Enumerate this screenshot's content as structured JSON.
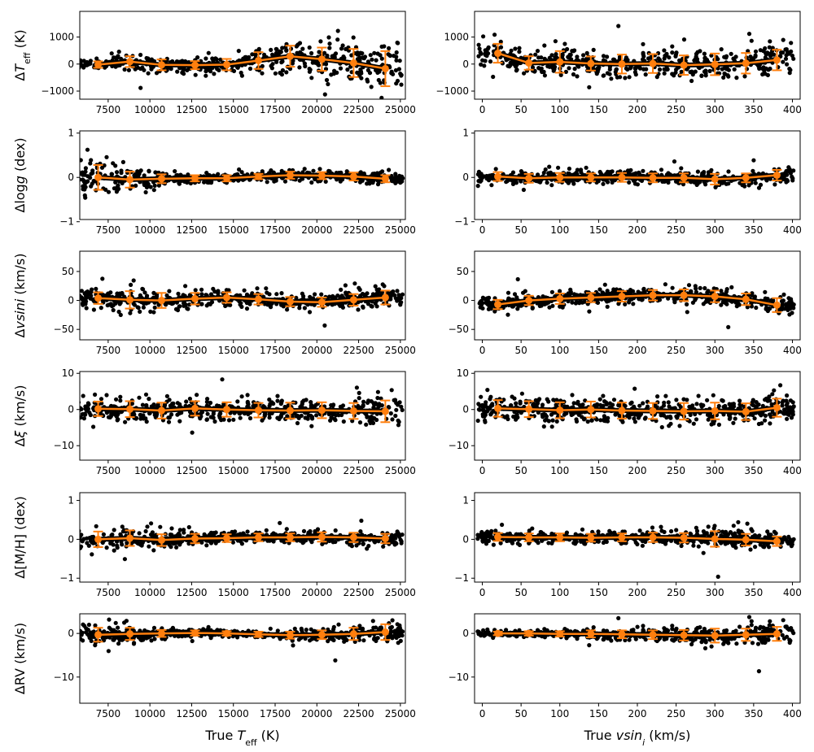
{
  "figure": {
    "type": "scatter-grid",
    "colors": {
      "points": "#000000",
      "binned": "#ff7f0e",
      "frame": "#000000"
    }
  },
  "chart_data": [
    {
      "type": "scatter",
      "row": 0,
      "col": 0,
      "ylabel": {
        "prefix": "Δ",
        "main": "T",
        "sub": "eff",
        "suffix": " (K)"
      },
      "xlim": [
        5800,
        25300
      ],
      "ylim": [
        -1300,
        1950
      ],
      "xticks": [
        7500,
        10000,
        12500,
        15000,
        17500,
        20000,
        22500,
        25000
      ],
      "yticks": [
        -1000,
        0,
        1000
      ],
      "binned": {
        "x": [
          6900,
          8800,
          10700,
          12700,
          14600,
          16500,
          18400,
          20300,
          22200,
          24100
        ],
        "y": [
          -20,
          90,
          -30,
          -40,
          -20,
          130,
          290,
          180,
          40,
          -170
        ],
        "err": [
          120,
          200,
          200,
          150,
          210,
          310,
          390,
          430,
          520,
          650
        ]
      }
    },
    {
      "type": "scatter",
      "row": 0,
      "col": 1,
      "ylabel": {
        "prefix": "",
        "main": "",
        "sub": "",
        "suffix": ""
      },
      "xlim": [
        -10,
        410
      ],
      "ylim": [
        -1300,
        1950
      ],
      "xticks": [
        0,
        50,
        100,
        150,
        200,
        250,
        300,
        350,
        400
      ],
      "yticks": [
        -1000,
        0,
        1000
      ],
      "binned": {
        "x": [
          20,
          60,
          100,
          140,
          180,
          220,
          260,
          300,
          340,
          380
        ],
        "y": [
          400,
          40,
          80,
          20,
          0,
          20,
          -40,
          -10,
          30,
          150
        ],
        "err": [
          350,
          250,
          400,
          260,
          350,
          350,
          360,
          400,
          380,
          380
        ]
      }
    },
    {
      "type": "scatter",
      "row": 1,
      "col": 0,
      "ylabel": {
        "prefix": "Δlog",
        "main": "g",
        "sub": "",
        "suffix": " (dex)"
      },
      "xlim": [
        5800,
        25300
      ],
      "ylim": [
        -0.95,
        1.05
      ],
      "xticks": [
        7500,
        10000,
        12500,
        15000,
        17500,
        20000,
        22500,
        25000
      ],
      "yticks": [
        -1,
        0,
        1
      ],
      "binned": {
        "x": [
          6900,
          8800,
          10700,
          12700,
          14600,
          16500,
          18400,
          20300,
          22200,
          24100
        ],
        "y": [
          0.0,
          -0.05,
          -0.03,
          -0.02,
          -0.02,
          0.02,
          0.05,
          0.04,
          0.02,
          -0.03
        ],
        "err": [
          0.28,
          0.18,
          0.1,
          0.07,
          0.07,
          0.06,
          0.08,
          0.08,
          0.09,
          0.08
        ]
      }
    },
    {
      "type": "scatter",
      "row": 1,
      "col": 1,
      "ylabel": {
        "prefix": "",
        "main": "",
        "sub": "",
        "suffix": ""
      },
      "xlim": [
        -10,
        410
      ],
      "ylim": [
        -0.95,
        1.05
      ],
      "xticks": [
        0,
        50,
        100,
        150,
        200,
        250,
        300,
        350,
        400
      ],
      "yticks": [
        -1,
        0,
        1
      ],
      "binned": {
        "x": [
          20,
          60,
          100,
          140,
          180,
          220,
          260,
          300,
          340,
          380
        ],
        "y": [
          0.02,
          -0.02,
          0.0,
          0.0,
          0.0,
          -0.01,
          -0.01,
          -0.04,
          -0.01,
          0.05
        ],
        "err": [
          0.1,
          0.1,
          0.1,
          0.09,
          0.1,
          0.1,
          0.1,
          0.12,
          0.1,
          0.12
        ]
      }
    },
    {
      "type": "scatter",
      "row": 2,
      "col": 0,
      "ylabel": {
        "prefix": "Δ",
        "main": "vsini",
        "sub": "",
        "suffix": " (km/s)"
      },
      "xlim": [
        5800,
        25300
      ],
      "ylim": [
        -68,
        85
      ],
      "xticks": [
        7500,
        10000,
        12500,
        15000,
        17500,
        20000,
        22500,
        25000
      ],
      "yticks": [
        -50,
        0,
        50
      ],
      "binned": {
        "x": [
          6900,
          8800,
          10700,
          12700,
          14600,
          16500,
          18400,
          20300,
          22200,
          24100
        ],
        "y": [
          4,
          1,
          0,
          3,
          5,
          2,
          -2,
          -3,
          1,
          5
        ],
        "err": [
          10,
          15,
          13,
          10,
          9,
          9,
          8,
          8,
          10,
          12
        ]
      }
    },
    {
      "type": "scatter",
      "row": 2,
      "col": 1,
      "ylabel": {
        "prefix": "",
        "main": "",
        "sub": "",
        "suffix": ""
      },
      "xlim": [
        -10,
        410
      ],
      "ylim": [
        -68,
        85
      ],
      "xticks": [
        0,
        50,
        100,
        150,
        200,
        250,
        300,
        350,
        400
      ],
      "yticks": [
        -50,
        0,
        50
      ],
      "binned": {
        "x": [
          20,
          60,
          100,
          140,
          180,
          220,
          260,
          300,
          340,
          380
        ],
        "y": [
          -7,
          0,
          3,
          5,
          7,
          9,
          9,
          7,
          2,
          -8
        ],
        "err": [
          8,
          8,
          9,
          8,
          9,
          9,
          10,
          10,
          10,
          12
        ]
      }
    },
    {
      "type": "scatter",
      "row": 3,
      "col": 0,
      "ylabel": {
        "prefix": "Δ",
        "main": "ξ",
        "sub": "",
        "suffix": " (km/s)"
      },
      "xlim": [
        5800,
        25300
      ],
      "ylim": [
        -14,
        10.5
      ],
      "xticks": [
        7500,
        10000,
        12500,
        15000,
        17500,
        20000,
        22500,
        25000
      ],
      "yticks": [
        -10,
        0,
        10
      ],
      "binned": {
        "x": [
          6900,
          8800,
          10700,
          12700,
          14600,
          16500,
          18400,
          20300,
          22200,
          24100
        ],
        "y": [
          0.2,
          0.1,
          -0.3,
          0.3,
          0.0,
          -0.2,
          -0.3,
          -0.2,
          -0.4,
          -0.5
        ],
        "err": [
          2.0,
          2.2,
          2.2,
          2.0,
          2.0,
          2.0,
          2.2,
          2.2,
          2.2,
          3.0
        ]
      }
    },
    {
      "type": "scatter",
      "row": 3,
      "col": 1,
      "ylabel": {
        "prefix": "",
        "main": "",
        "sub": "",
        "suffix": ""
      },
      "xlim": [
        -10,
        410
      ],
      "ylim": [
        -14,
        10.5
      ],
      "xticks": [
        0,
        50,
        100,
        150,
        200,
        250,
        300,
        350,
        400
      ],
      "yticks": [
        -10,
        0,
        10
      ],
      "binned": {
        "x": [
          20,
          60,
          100,
          140,
          180,
          220,
          260,
          300,
          340,
          380
        ],
        "y": [
          0.3,
          0.1,
          -0.2,
          0.0,
          -0.3,
          -0.4,
          -0.5,
          -0.4,
          -0.6,
          0.5
        ],
        "err": [
          2.3,
          2.2,
          2.2,
          2.2,
          2.2,
          2.2,
          2.3,
          2.3,
          2.3,
          2.5
        ]
      }
    },
    {
      "type": "scatter",
      "row": 4,
      "col": 0,
      "ylabel": {
        "prefix": "Δ",
        "main": "[M/H]",
        "sub": "",
        "suffix": " (dex)"
      },
      "xlim": [
        5800,
        25300
      ],
      "ylim": [
        -1.1,
        1.2
      ],
      "xticks": [
        7500,
        10000,
        12500,
        15000,
        17500,
        20000,
        22500,
        25000
      ],
      "yticks": [
        -1,
        0,
        1
      ],
      "binned": {
        "x": [
          6900,
          8800,
          10700,
          12700,
          14600,
          16500,
          18400,
          20300,
          22200,
          24100
        ],
        "y": [
          0.0,
          0.03,
          -0.02,
          0.02,
          0.03,
          0.05,
          0.05,
          0.06,
          0.05,
          0.02
        ],
        "err": [
          0.2,
          0.2,
          0.15,
          0.12,
          0.1,
          0.1,
          0.1,
          0.12,
          0.12,
          0.12
        ]
      }
    },
    {
      "type": "scatter",
      "row": 4,
      "col": 1,
      "ylabel": {
        "prefix": "",
        "main": "",
        "sub": "",
        "suffix": ""
      },
      "xlim": [
        -10,
        410
      ],
      "ylim": [
        -1.1,
        1.2
      ],
      "xticks": [
        0,
        50,
        100,
        150,
        200,
        250,
        300,
        350,
        400
      ],
      "yticks": [
        -1,
        0,
        1
      ],
      "binned": {
        "x": [
          20,
          60,
          100,
          140,
          180,
          220,
          260,
          300,
          340,
          380
        ],
        "y": [
          0.06,
          0.05,
          0.05,
          0.04,
          0.05,
          0.05,
          0.04,
          0.01,
          -0.01,
          -0.05
        ],
        "err": [
          0.1,
          0.1,
          0.1,
          0.1,
          0.1,
          0.12,
          0.12,
          0.2,
          0.15,
          0.12
        ]
      }
    },
    {
      "type": "scatter",
      "row": 5,
      "col": 0,
      "ylabel": {
        "prefix": "Δ",
        "main": "RV",
        "sub": "",
        "suffix": " (km/s)"
      },
      "xlim": [
        5800,
        25300
      ],
      "ylim": [
        -16,
        4.5
      ],
      "xticks": [
        7500,
        10000,
        12500,
        15000,
        17500,
        20000,
        22500,
        25000
      ],
      "yticks": [
        -10,
        0
      ],
      "binned": {
        "x": [
          6900,
          8800,
          10700,
          12700,
          14600,
          16500,
          18400,
          20300,
          22200,
          24100
        ],
        "y": [
          -0.3,
          -0.1,
          0.0,
          0.1,
          0.0,
          -0.2,
          -0.4,
          -0.3,
          -0.1,
          0.3
        ],
        "err": [
          1.6,
          1.4,
          0.8,
          0.6,
          0.5,
          0.6,
          0.8,
          1.0,
          1.4,
          1.8
        ]
      },
      "xlabel": {
        "prefix": "True ",
        "main": "T",
        "sub": "eff",
        "suffix": " (K)"
      }
    },
    {
      "type": "scatter",
      "row": 5,
      "col": 1,
      "ylabel": {
        "prefix": "",
        "main": "",
        "sub": "",
        "suffix": ""
      },
      "xlim": [
        -10,
        410
      ],
      "ylim": [
        -16,
        4.5
      ],
      "xticks": [
        0,
        50,
        100,
        150,
        200,
        250,
        300,
        350,
        400
      ],
      "yticks": [
        -10,
        0
      ],
      "binned": {
        "x": [
          20,
          60,
          100,
          140,
          180,
          220,
          260,
          300,
          340,
          380
        ],
        "y": [
          0.0,
          0.0,
          -0.1,
          -0.1,
          -0.2,
          -0.3,
          -0.4,
          -0.5,
          -0.3,
          -0.1
        ],
        "err": [
          0.4,
          0.5,
          0.6,
          0.8,
          0.9,
          1.0,
          1.2,
          1.6,
          1.4,
          1.6
        ]
      },
      "xlabel": {
        "prefix": "True ",
        "main": "vsin",
        "sub": "i",
        "suffix": " (km/s)"
      }
    }
  ]
}
